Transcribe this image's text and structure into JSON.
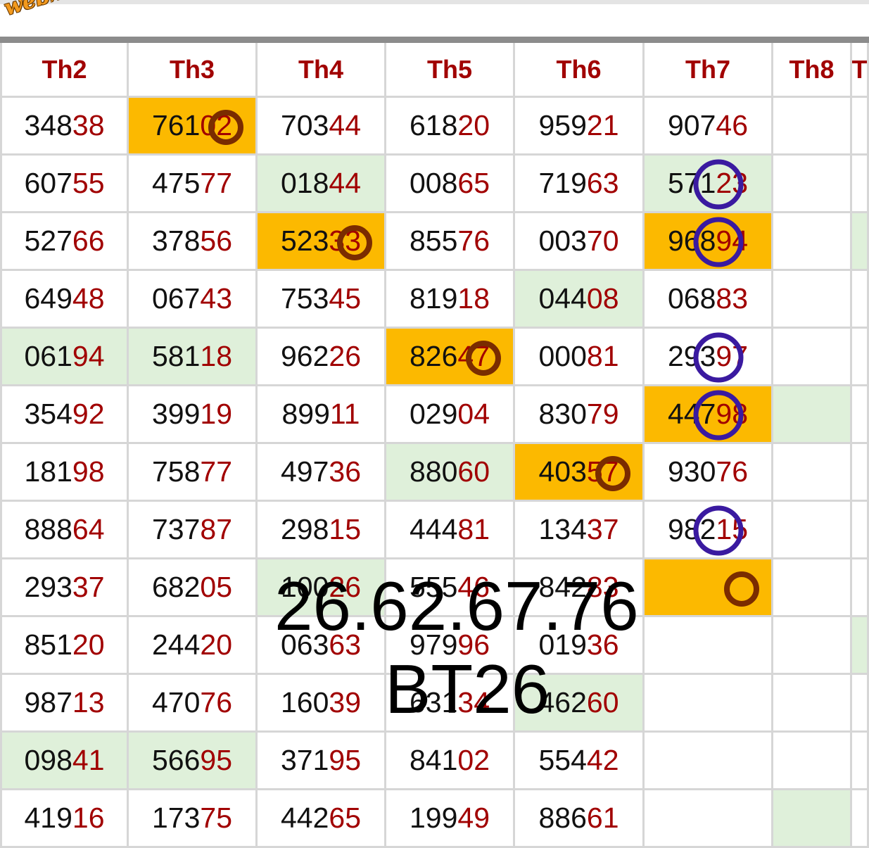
{
  "logo_text": "webxoso.net",
  "headers": [
    "Th2",
    "Th3",
    "Th4",
    "Th5",
    "Th6",
    "Th7",
    "Th8",
    "T"
  ],
  "rows": [
    [
      [
        "348",
        "38",
        ""
      ],
      [
        "761",
        "02",
        "orange"
      ],
      [
        "703",
        "44",
        ""
      ],
      [
        "618",
        "20",
        ""
      ],
      [
        "959",
        "21",
        ""
      ],
      [
        "907",
        "46",
        ""
      ],
      [
        "",
        "",
        ""
      ],
      [
        "",
        "",
        ""
      ]
    ],
    [
      [
        "607",
        "55",
        ""
      ],
      [
        "475",
        "77",
        ""
      ],
      [
        "018",
        "44",
        "green"
      ],
      [
        "008",
        "65",
        ""
      ],
      [
        "719",
        "63",
        ""
      ],
      [
        "571",
        "23",
        "green"
      ],
      [
        "",
        "",
        ""
      ],
      [
        "",
        "",
        ""
      ]
    ],
    [
      [
        "527",
        "66",
        ""
      ],
      [
        "378",
        "56",
        ""
      ],
      [
        "523",
        "33",
        "orange"
      ],
      [
        "855",
        "76",
        ""
      ],
      [
        "003",
        "70",
        ""
      ],
      [
        "968",
        "94",
        "orange"
      ],
      [
        "",
        "",
        ""
      ],
      [
        "",
        "",
        "green"
      ]
    ],
    [
      [
        "649",
        "48",
        ""
      ],
      [
        "067",
        "43",
        ""
      ],
      [
        "753",
        "45",
        ""
      ],
      [
        "819",
        "18",
        ""
      ],
      [
        "044",
        "08",
        "green"
      ],
      [
        "068",
        "83",
        ""
      ],
      [
        "",
        "",
        ""
      ],
      [
        "",
        "",
        ""
      ]
    ],
    [
      [
        "061",
        "94",
        "green"
      ],
      [
        "581",
        "18",
        "green"
      ],
      [
        "962",
        "26",
        ""
      ],
      [
        "826",
        "47",
        "orange"
      ],
      [
        "000",
        "81",
        ""
      ],
      [
        "293",
        "97",
        ""
      ],
      [
        "",
        "",
        ""
      ],
      [
        "",
        "",
        ""
      ]
    ],
    [
      [
        "354",
        "92",
        ""
      ],
      [
        "399",
        "19",
        ""
      ],
      [
        "899",
        "11",
        ""
      ],
      [
        "029",
        "04",
        ""
      ],
      [
        "830",
        "79",
        ""
      ],
      [
        "447",
        "98",
        "orange"
      ],
      [
        "",
        "",
        "green"
      ],
      [
        "",
        "",
        ""
      ]
    ],
    [
      [
        "181",
        "98",
        ""
      ],
      [
        "758",
        "77",
        ""
      ],
      [
        "497",
        "36",
        ""
      ],
      [
        "880",
        "60",
        "green"
      ],
      [
        "403",
        "57",
        "orange"
      ],
      [
        "930",
        "76",
        ""
      ],
      [
        "",
        "",
        ""
      ],
      [
        "",
        "",
        ""
      ]
    ],
    [
      [
        "888",
        "64",
        ""
      ],
      [
        "737",
        "87",
        ""
      ],
      [
        "298",
        "15",
        ""
      ],
      [
        "444",
        "81",
        ""
      ],
      [
        "134",
        "37",
        ""
      ],
      [
        "982",
        "15",
        ""
      ],
      [
        "",
        "",
        ""
      ],
      [
        "",
        "",
        ""
      ]
    ],
    [
      [
        "293",
        "37",
        ""
      ],
      [
        "682",
        "05",
        ""
      ],
      [
        "100",
        "26",
        "green"
      ],
      [
        "555",
        "46",
        ""
      ],
      [
        "842",
        "83",
        ""
      ],
      [
        "",
        "",
        "orange"
      ],
      [
        "",
        "",
        ""
      ],
      [
        "",
        "",
        ""
      ]
    ],
    [
      [
        "851",
        "20",
        ""
      ],
      [
        "244",
        "20",
        ""
      ],
      [
        "063",
        "63",
        ""
      ],
      [
        "979",
        "96",
        ""
      ],
      [
        "019",
        "36",
        ""
      ],
      [
        "",
        "",
        ""
      ],
      [
        "",
        "",
        ""
      ],
      [
        "",
        "",
        "green"
      ]
    ],
    [
      [
        "987",
        "13",
        ""
      ],
      [
        "470",
        "76",
        ""
      ],
      [
        "160",
        "39",
        ""
      ],
      [
        "631",
        "34",
        ""
      ],
      [
        "462",
        "60",
        "green"
      ],
      [
        "",
        "",
        ""
      ],
      [
        "",
        "",
        ""
      ],
      [
        "",
        "",
        ""
      ]
    ],
    [
      [
        "098",
        "41",
        "green"
      ],
      [
        "566",
        "95",
        "green"
      ],
      [
        "371",
        "95",
        ""
      ],
      [
        "841",
        "02",
        ""
      ],
      [
        "554",
        "42",
        ""
      ],
      [
        "",
        "",
        ""
      ],
      [
        "",
        "",
        ""
      ],
      [
        "",
        "",
        ""
      ]
    ],
    [
      [
        "419",
        "16",
        ""
      ],
      [
        "173",
        "75",
        ""
      ],
      [
        "442",
        "65",
        ""
      ],
      [
        "199",
        "49",
        ""
      ],
      [
        "886",
        "61",
        ""
      ],
      [
        "",
        "",
        ""
      ],
      [
        "",
        "",
        "green"
      ],
      [
        "",
        "",
        ""
      ]
    ]
  ],
  "overlay_numbers": "26.62.67.76",
  "overlay_code": "BT26",
  "colors": {
    "header_red": "#a10000",
    "highlight_orange": "#fcb900",
    "highlight_green": "#dff0da",
    "circle_brown": "#7a2c00",
    "circle_blue": "#3a1aa0"
  },
  "circled_cells": [
    {
      "row": 0,
      "col": 1,
      "color": "brown"
    },
    {
      "row": 2,
      "col": 2,
      "color": "brown"
    },
    {
      "row": 4,
      "col": 3,
      "color": "brown"
    },
    {
      "row": 6,
      "col": 4,
      "color": "brown"
    },
    {
      "row": 8,
      "col": 5,
      "color": "brown"
    },
    {
      "row": 1,
      "col": 5,
      "color": "blue"
    },
    {
      "row": 2,
      "col": 5,
      "color": "blue"
    },
    {
      "row": 4,
      "col": 5,
      "color": "blue"
    },
    {
      "row": 5,
      "col": 5,
      "color": "blue"
    },
    {
      "row": 7,
      "col": 5,
      "color": "blue"
    }
  ]
}
